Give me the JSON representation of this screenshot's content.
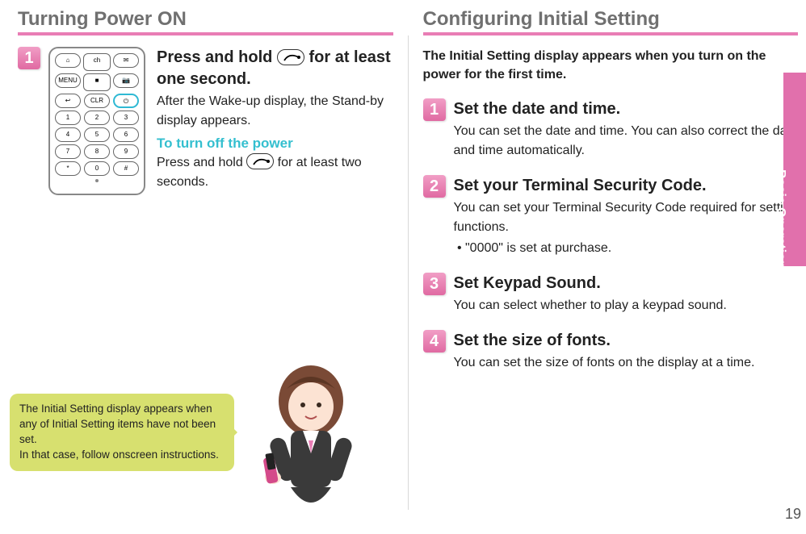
{
  "left": {
    "title": "Turning Power ON",
    "step1": {
      "num": "1",
      "head_pre": "Press and hold ",
      "head_post": " for at least one second.",
      "text": "After the Wake-up display, the Stand-by display appears.",
      "sub": "To turn off the power",
      "sub_text_pre": "Press and hold ",
      "sub_text_post": " for at least two seconds."
    },
    "bubble": "The Initial Setting display appears when any of Initial Setting items have not been set.\nIn that case, follow onscreen instructions."
  },
  "right": {
    "title": "Configuring Initial Setting",
    "intro": "The Initial Setting display appears when you turn on the power for the first time.",
    "steps": [
      {
        "num": "1",
        "head": "Set the date and time.",
        "text": "You can set the date and time. You can also correct the date and time automatically."
      },
      {
        "num": "2",
        "head": "Set your Terminal Security Code.",
        "text": "You can set your Terminal Security Code required for setting functions.",
        "bullet": "\"0000\" is set at purchase."
      },
      {
        "num": "3",
        "head": "Set Keypad Sound.",
        "text": "You can select whether to play a keypad sound."
      },
      {
        "num": "4",
        "head": "Set the size of fonts.",
        "text": "You can set the size of fonts on the display at a time."
      }
    ]
  },
  "sidetab": "Basic Operation",
  "pagenum": "19",
  "colors": {
    "accent": "#e97db5",
    "step_bg_top": "#f19ec6",
    "step_bg_bot": "#e06aa2",
    "subhead": "#34bfcf",
    "bubble": "#d7e06f",
    "sidetab": "#e170ac",
    "title": "#707070"
  }
}
